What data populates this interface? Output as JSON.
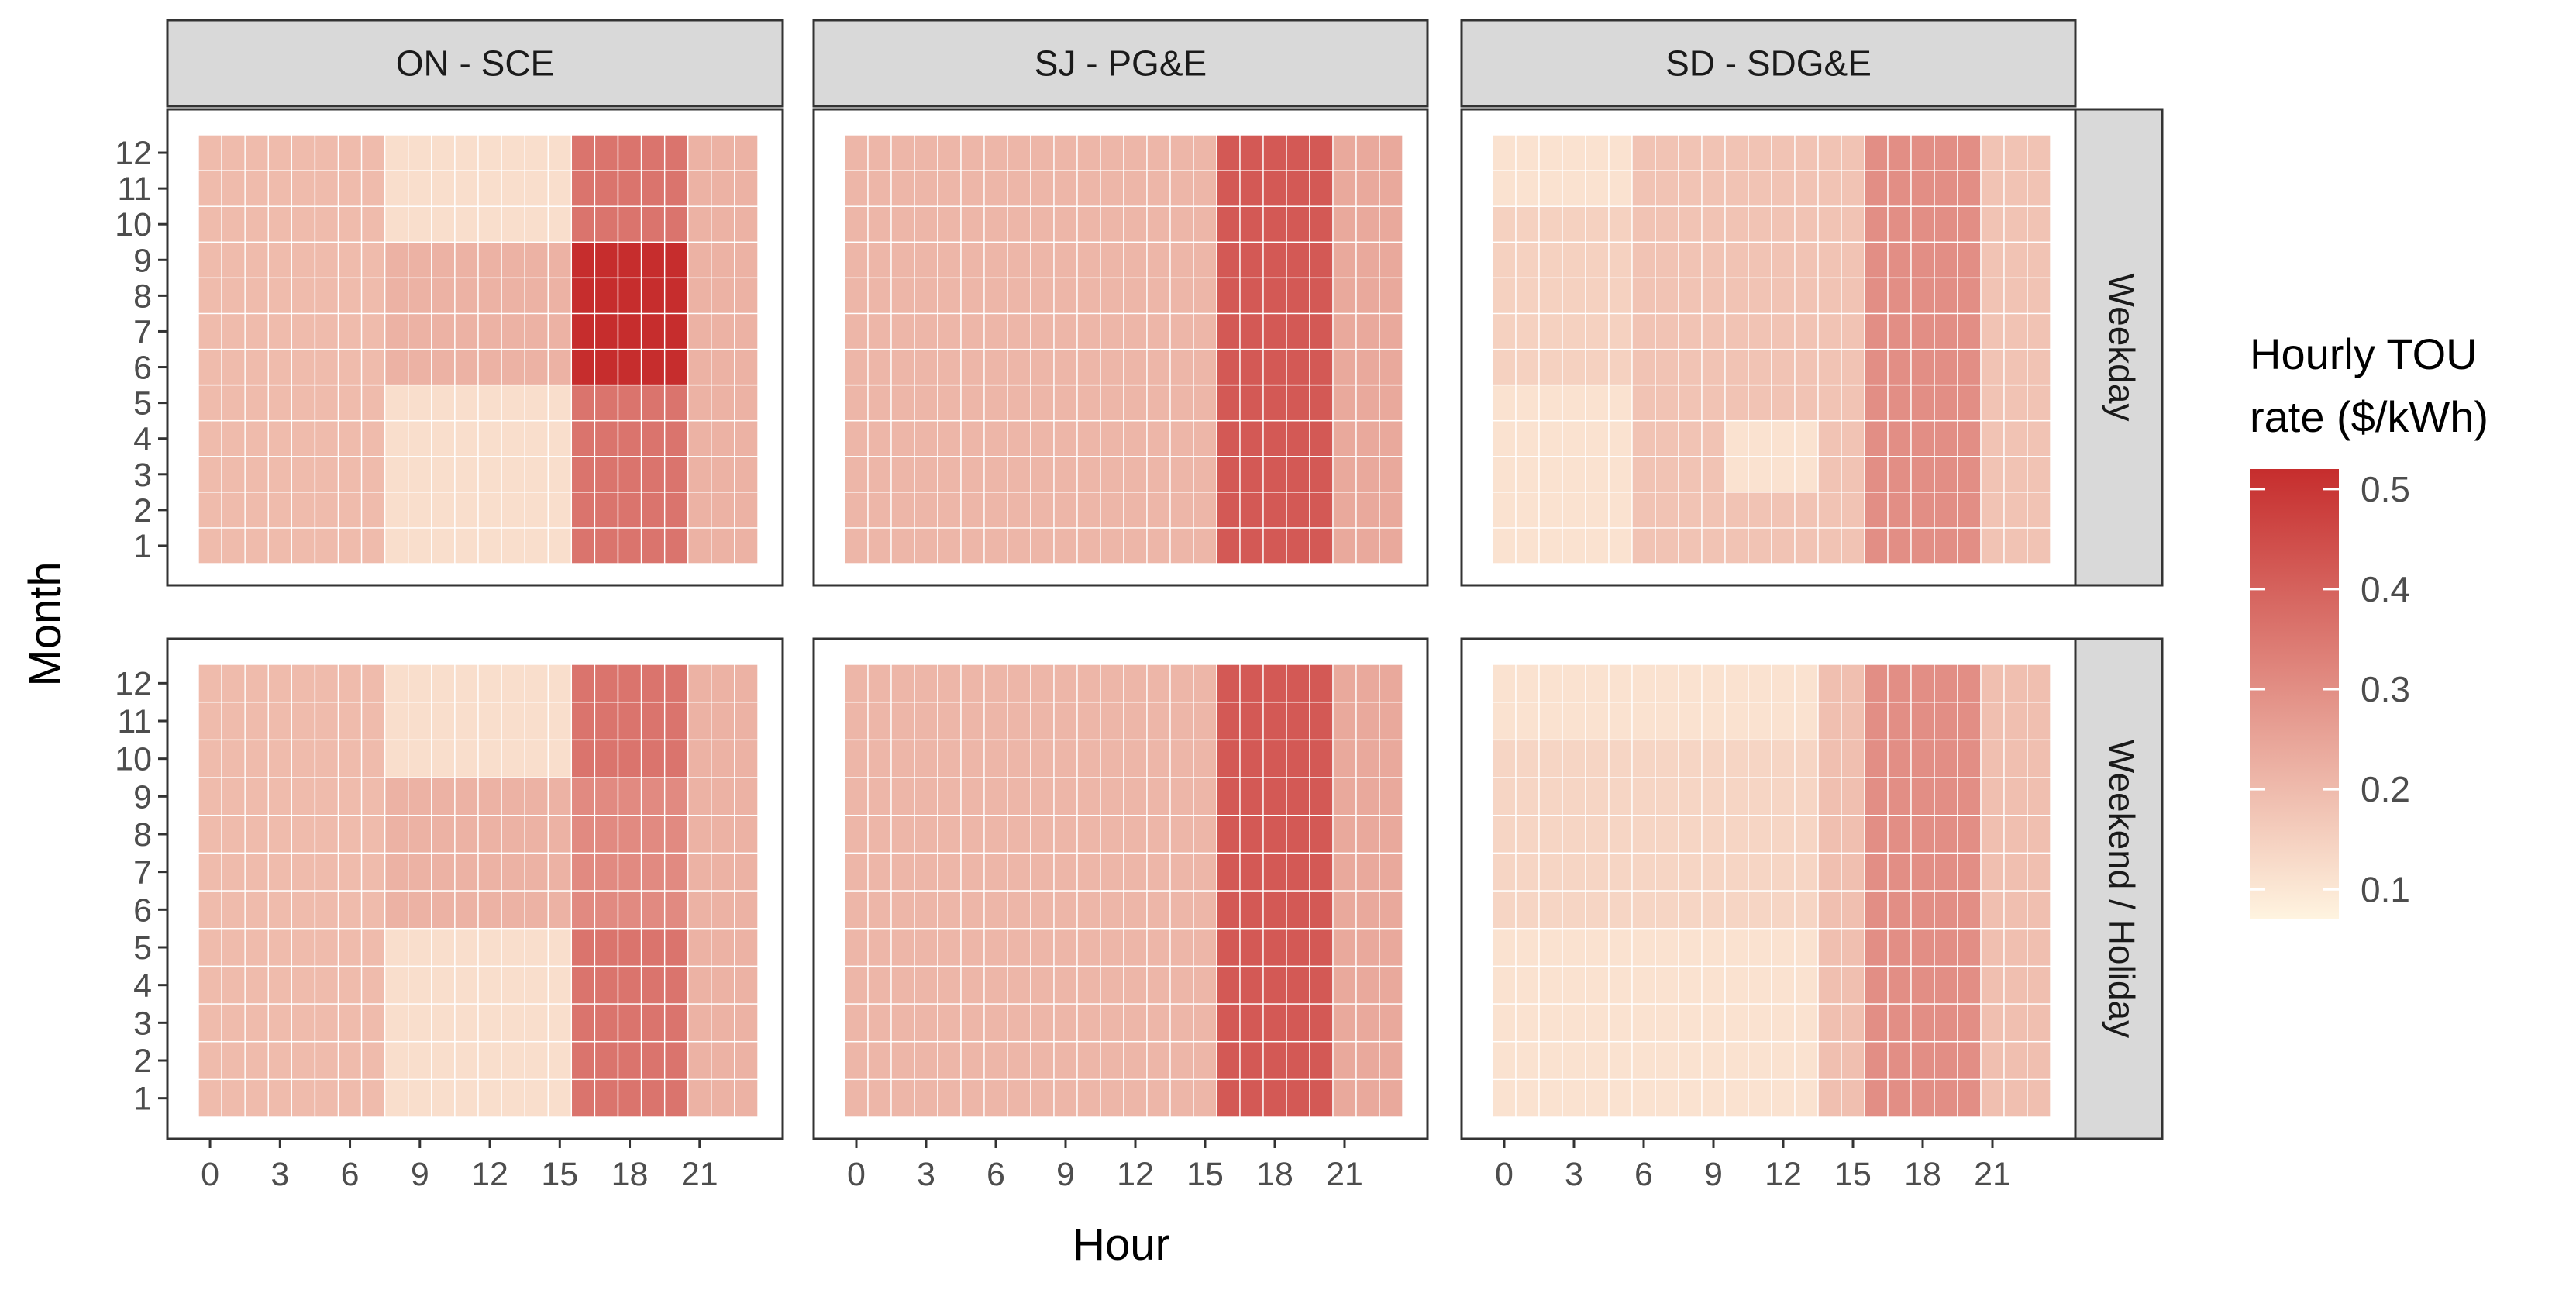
{
  "chart_data": {
    "type": "heatmap",
    "xlabel": "Hour",
    "ylabel": "Month",
    "x_ticks": [
      0,
      3,
      6,
      9,
      12,
      15,
      18,
      21
    ],
    "x_tick_labels": [
      "0",
      "3",
      "6",
      "9",
      "12",
      "15",
      "18",
      "21"
    ],
    "hours": [
      0,
      1,
      2,
      3,
      4,
      5,
      6,
      7,
      8,
      9,
      10,
      11,
      12,
      13,
      14,
      15,
      16,
      17,
      18,
      19,
      20,
      21,
      22,
      23
    ],
    "months": [
      1,
      2,
      3,
      4,
      5,
      6,
      7,
      8,
      9,
      10,
      11,
      12
    ],
    "month_labels": [
      "1",
      "2",
      "3",
      "4",
      "5",
      "6",
      "7",
      "8",
      "9",
      "10",
      "11",
      "12"
    ],
    "columns": [
      "ON - SCE",
      "SJ - PG&E",
      "SD - SDG&E"
    ],
    "rows": [
      "Weekday",
      "Weekend / Holiday"
    ],
    "legend": {
      "title_line1": "Hourly TOU",
      "title_line2": "rate ($/kWh)",
      "min": 0.07,
      "max": 0.52,
      "ticks": [
        0.1,
        0.2,
        0.3,
        0.4,
        0.5
      ],
      "tick_labels": [
        "0.1",
        "0.2",
        "0.3",
        "0.4",
        "0.5"
      ],
      "low_color": "#fff4e0",
      "high_color": "#c62d2d",
      "position": "right"
    },
    "colors": {
      "strip_fill": "#d9d9d9",
      "panel_border": "#333333",
      "grid": "#ffffff",
      "text": "#4d4d4d",
      "title": "#000000"
    },
    "panels": [
      {
        "column": "ON - SCE",
        "row": "Weekday",
        "default": 0.2,
        "blocks": [
          {
            "m": [
              1,
              12
            ],
            "h": [
              16,
              20
            ],
            "v": 0.36
          },
          {
            "m": [
              1,
              12
            ],
            "h": [
              21,
              23
            ],
            "v": 0.22
          },
          {
            "m": [
              1,
              5
            ],
            "h": [
              8,
              15
            ],
            "v": 0.12
          },
          {
            "m": [
              10,
              12
            ],
            "h": [
              8,
              15
            ],
            "v": 0.12
          },
          {
            "m": [
              6,
              9
            ],
            "h": [
              8,
              15
            ],
            "v": 0.22
          },
          {
            "m": [
              6,
              9
            ],
            "h": [
              16,
              20
            ],
            "v": 0.52
          }
        ]
      },
      {
        "column": "SJ - PG&E",
        "row": "Weekday",
        "default": 0.21,
        "blocks": [
          {
            "m": [
              1,
              12
            ],
            "h": [
              16,
              20
            ],
            "v": 0.42
          },
          {
            "m": [
              1,
              12
            ],
            "h": [
              21,
              23
            ],
            "v": 0.24
          }
        ]
      },
      {
        "column": "SD - SDG&E",
        "row": "Weekday",
        "default": 0.18,
        "blocks": [
          {
            "m": [
              1,
              5
            ],
            "h": [
              0,
              5
            ],
            "v": 0.11
          },
          {
            "m": [
              11,
              12
            ],
            "h": [
              0,
              5
            ],
            "v": 0.11
          },
          {
            "m": [
              6,
              10
            ],
            "h": [
              0,
              5
            ],
            "v": 0.15
          },
          {
            "m": [
              3,
              4
            ],
            "h": [
              10,
              13
            ],
            "v": 0.11
          },
          {
            "m": [
              1,
              12
            ],
            "h": [
              16,
              20
            ],
            "v": 0.3
          }
        ]
      },
      {
        "column": "ON - SCE",
        "row": "Weekend / Holiday",
        "default": 0.2,
        "blocks": [
          {
            "m": [
              1,
              12
            ],
            "h": [
              16,
              20
            ],
            "v": 0.36
          },
          {
            "m": [
              1,
              12
            ],
            "h": [
              21,
              23
            ],
            "v": 0.22
          },
          {
            "m": [
              1,
              5
            ],
            "h": [
              8,
              15
            ],
            "v": 0.12
          },
          {
            "m": [
              10,
              12
            ],
            "h": [
              8,
              15
            ],
            "v": 0.12
          },
          {
            "m": [
              6,
              9
            ],
            "h": [
              8,
              15
            ],
            "v": 0.22
          },
          {
            "m": [
              6,
              9
            ],
            "h": [
              16,
              20
            ],
            "v": 0.31
          }
        ]
      },
      {
        "column": "SJ - PG&E",
        "row": "Weekend / Holiday",
        "default": 0.21,
        "blocks": [
          {
            "m": [
              1,
              12
            ],
            "h": [
              16,
              20
            ],
            "v": 0.42
          },
          {
            "m": [
              1,
              12
            ],
            "h": [
              21,
              23
            ],
            "v": 0.24
          }
        ]
      },
      {
        "column": "SD - SDG&E",
        "row": "Weekend / Holiday",
        "default": 0.11,
        "blocks": [
          {
            "m": [
              6,
              10
            ],
            "h": [
              0,
              13
            ],
            "v": 0.14
          },
          {
            "m": [
              1,
              12
            ],
            "h": [
              14,
              15
            ],
            "v": 0.19
          },
          {
            "m": [
              1,
              12
            ],
            "h": [
              16,
              20
            ],
            "v": 0.3
          },
          {
            "m": [
              1,
              12
            ],
            "h": [
              21,
              23
            ],
            "v": 0.19
          }
        ]
      }
    ]
  }
}
